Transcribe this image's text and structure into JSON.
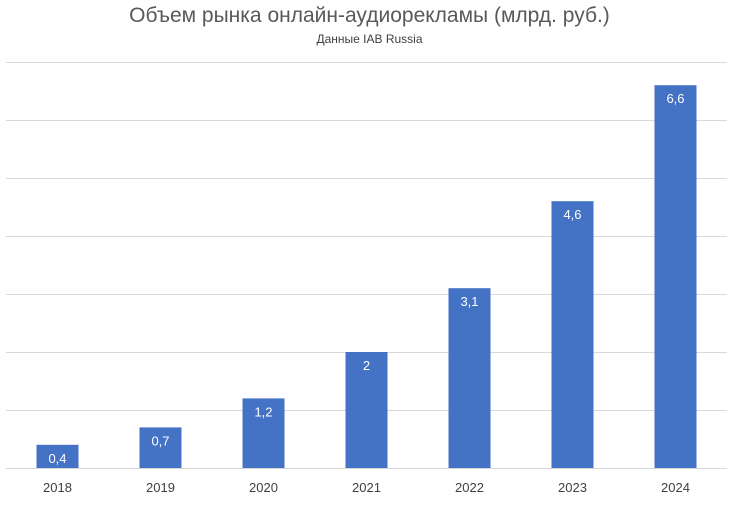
{
  "chart_data": {
    "type": "bar",
    "title": "Объем рынка онлайн-аудиорекламы (млрд. руб.)",
    "subtitle": "Данные IAB Russia",
    "categories": [
      "2018",
      "2019",
      "2020",
      "2021",
      "2022",
      "2023",
      "2024"
    ],
    "values": [
      0.4,
      0.7,
      1.2,
      2,
      3.1,
      4.6,
      6.6
    ],
    "value_labels": [
      "0,4",
      "0,7",
      "1,2",
      "2",
      "3,1",
      "4,6",
      "6,6"
    ],
    "ylim": [
      0,
      7
    ],
    "ytick_step": 1,
    "grid": true,
    "legend": "none",
    "bar_color": "#4472C4",
    "label_color": "#ffffff",
    "gridline_color": "#D9D9D9"
  }
}
